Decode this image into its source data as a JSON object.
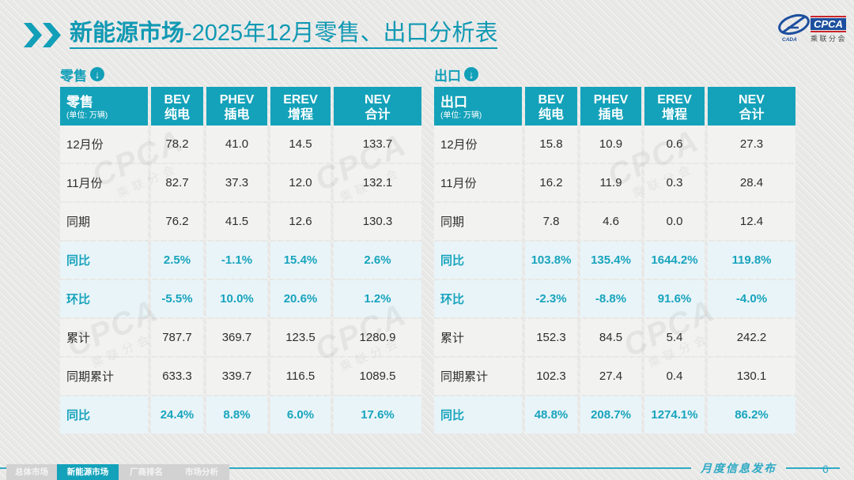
{
  "slide": {
    "title": {
      "highlight": "新能源市场",
      "rest": "-2025年12月零售、出口分析表"
    },
    "footer_caption": "月度信息发布",
    "page_number": "6"
  },
  "logo": {
    "name": "CPCA",
    "subtitle": "乘联分会",
    "small": "CADA"
  },
  "colors": {
    "teal": "#14a2ba",
    "title_teal": "#1099b3",
    "highlight_bg": "#e9f4f8",
    "row_bg": "#f2f2f1",
    "tab_gray": "#d2d2d2",
    "red_accent": "#c9252b",
    "logo_blue": "#1d4f9e"
  },
  "tables": [
    {
      "section": "零售",
      "unit": "(单位: 万辆)",
      "columns": [
        [
          "BEV",
          "纯电"
        ],
        [
          "PHEV",
          "插电"
        ],
        [
          "EREV",
          "增程"
        ],
        [
          "NEV",
          "合计"
        ]
      ],
      "rows": [
        {
          "label": "12月份",
          "highlight": false,
          "values": [
            "78.2",
            "41.0",
            "14.5",
            "133.7"
          ]
        },
        {
          "label": "11月份",
          "highlight": false,
          "values": [
            "82.7",
            "37.3",
            "12.0",
            "132.1"
          ]
        },
        {
          "label": "同期",
          "highlight": false,
          "values": [
            "76.2",
            "41.5",
            "12.6",
            "130.3"
          ]
        },
        {
          "label": "同比",
          "highlight": true,
          "values": [
            "2.5%",
            "-1.1%",
            "15.4%",
            "2.6%"
          ]
        },
        {
          "label": "环比",
          "highlight": true,
          "values": [
            "-5.5%",
            "10.0%",
            "20.6%",
            "1.2%"
          ]
        },
        {
          "label": "累计",
          "highlight": false,
          "values": [
            "787.7",
            "369.7",
            "123.5",
            "1280.9"
          ]
        },
        {
          "label": "同期累计",
          "highlight": false,
          "values": [
            "633.3",
            "339.7",
            "116.5",
            "1089.5"
          ]
        },
        {
          "label": "同比",
          "highlight": true,
          "values": [
            "24.4%",
            "8.8%",
            "6.0%",
            "17.6%"
          ]
        }
      ]
    },
    {
      "section": "出口",
      "unit": "(单位: 万辆)",
      "columns": [
        [
          "BEV",
          "纯电"
        ],
        [
          "PHEV",
          "插电"
        ],
        [
          "EREV",
          "增程"
        ],
        [
          "NEV",
          "合计"
        ]
      ],
      "rows": [
        {
          "label": "12月份",
          "highlight": false,
          "values": [
            "15.8",
            "10.9",
            "0.6",
            "27.3"
          ]
        },
        {
          "label": "11月份",
          "highlight": false,
          "values": [
            "16.2",
            "11.9",
            "0.3",
            "28.4"
          ]
        },
        {
          "label": "同期",
          "highlight": false,
          "values": [
            "7.8",
            "4.6",
            "0.0",
            "12.4"
          ]
        },
        {
          "label": "同比",
          "highlight": true,
          "values": [
            "103.8%",
            "135.4%",
            "1644.2%",
            "119.8%"
          ]
        },
        {
          "label": "环比",
          "highlight": true,
          "values": [
            "-2.3%",
            "-8.8%",
            "91.6%",
            "-4.0%"
          ]
        },
        {
          "label": "累计",
          "highlight": false,
          "values": [
            "152.3",
            "84.5",
            "5.4",
            "242.2"
          ]
        },
        {
          "label": "同期累计",
          "highlight": false,
          "values": [
            "102.3",
            "27.4",
            "0.4",
            "130.1"
          ]
        },
        {
          "label": "同比",
          "highlight": true,
          "values": [
            "48.8%",
            "208.7%",
            "1274.1%",
            "86.2%"
          ]
        }
      ]
    }
  ],
  "tabs": {
    "items": [
      "总体市场",
      "新能源市场",
      "厂商排名",
      "市场分析"
    ],
    "active": 1
  },
  "watermark": {
    "big": "CPCA",
    "small": "乘联分会"
  }
}
